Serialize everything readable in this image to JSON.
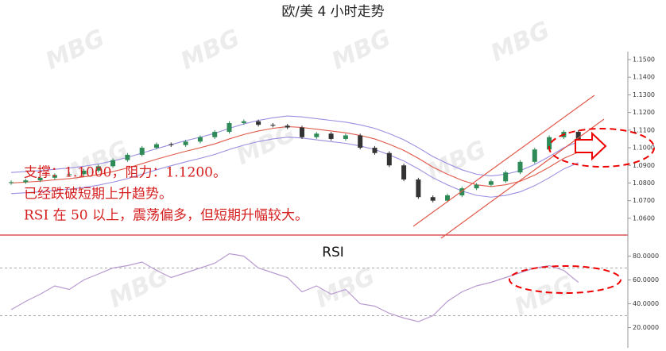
{
  "chart_data": [
    {
      "type": "candlestick",
      "title": "欧/美 4 小时走势",
      "open": [
        1.08,
        1.0805,
        1.0815,
        1.083,
        1.0845,
        1.085,
        1.087,
        1.0895,
        1.093,
        1.096,
        1.1,
        1.102,
        1.1015,
        1.1035,
        1.106,
        1.109,
        1.114,
        1.115,
        1.113,
        1.1125,
        1.1115,
        1.106,
        1.108,
        1.105,
        1.107,
        1.1,
        1.097,
        1.09,
        1.082,
        1.072,
        1.07,
        1.073,
        1.077,
        1.079,
        1.081,
        1.086,
        1.092,
        1.099,
        1.106,
        1.109
      ],
      "high": [
        1.0815,
        1.0825,
        1.084,
        1.0855,
        1.086,
        1.088,
        1.0905,
        1.094,
        1.097,
        1.101,
        1.103,
        1.103,
        1.1045,
        1.107,
        1.11,
        1.115,
        1.116,
        1.116,
        1.114,
        1.1135,
        1.1125,
        1.109,
        1.109,
        1.108,
        1.108,
        1.101,
        1.098,
        1.091,
        1.083,
        1.073,
        1.074,
        1.078,
        1.08,
        1.082,
        1.087,
        1.093,
        1.1,
        1.107,
        1.11,
        1.11
      ],
      "low": [
        1.079,
        1.0795,
        1.0805,
        1.082,
        1.0835,
        1.084,
        1.086,
        1.0885,
        1.092,
        1.095,
        1.099,
        1.1005,
        1.1005,
        1.1025,
        1.105,
        1.108,
        1.113,
        1.112,
        1.1115,
        1.1105,
        1.105,
        1.105,
        1.104,
        1.104,
        1.099,
        1.096,
        1.089,
        1.081,
        1.071,
        1.069,
        1.069,
        1.072,
        1.076,
        1.078,
        1.08,
        1.085,
        1.091,
        1.098,
        1.105,
        1.104
      ],
      "close": [
        1.0805,
        1.0815,
        1.083,
        1.0845,
        1.085,
        1.087,
        1.0895,
        1.093,
        1.096,
        1.1,
        1.102,
        1.1015,
        1.1035,
        1.106,
        1.109,
        1.114,
        1.115,
        1.113,
        1.1125,
        1.1115,
        1.106,
        1.108,
        1.105,
        1.107,
        1.1,
        1.097,
        1.09,
        1.082,
        1.072,
        1.07,
        1.073,
        1.077,
        1.079,
        1.081,
        1.086,
        1.092,
        1.099,
        1.106,
        1.109,
        1.105
      ],
      "bands": {
        "upper": [
          1.086,
          1.0865,
          1.087,
          1.0878,
          1.0885,
          1.0895,
          1.0908,
          1.0925,
          1.0945,
          1.097,
          1.0995,
          1.1018,
          1.104,
          1.106,
          1.1082,
          1.111,
          1.1135,
          1.1155,
          1.117,
          1.118,
          1.1175,
          1.1165,
          1.1155,
          1.1145,
          1.113,
          1.111,
          1.108,
          1.1045,
          1.1,
          1.095,
          1.091,
          1.0875,
          1.085,
          1.084,
          1.085,
          1.087,
          1.0905,
          1.095,
          1.1,
          1.1035
        ],
        "middle": [
          1.08,
          1.0805,
          1.081,
          1.0818,
          1.0825,
          1.0835,
          1.0848,
          1.0865,
          1.0885,
          1.091,
          1.0935,
          1.0958,
          1.098,
          1.1,
          1.1022,
          1.105,
          1.1075,
          1.1095,
          1.111,
          1.112,
          1.1115,
          1.1105,
          1.1095,
          1.1085,
          1.107,
          1.105,
          1.102,
          1.0985,
          1.094,
          1.089,
          1.085,
          1.0815,
          1.079,
          1.078,
          1.079,
          1.081,
          1.0845,
          1.089,
          1.094,
          1.0975
        ],
        "lower": [
          1.074,
          1.0745,
          1.075,
          1.0758,
          1.0765,
          1.0775,
          1.0788,
          1.0805,
          1.0825,
          1.085,
          1.0875,
          1.0898,
          1.092,
          1.094,
          1.0962,
          1.099,
          1.1015,
          1.1035,
          1.105,
          1.106,
          1.1055,
          1.1045,
          1.1035,
          1.1025,
          1.101,
          1.099,
          1.096,
          1.0925,
          1.088,
          1.083,
          1.079,
          1.0755,
          1.073,
          1.072,
          1.073,
          1.075,
          1.0785,
          1.083,
          1.088,
          1.0915
        ]
      },
      "up_color": "#2e8b57",
      "down_color": "#333333",
      "band_color": "#9a8fe0",
      "middle_color": "#e05a4a",
      "ylim": [
        1.0532,
        1.1545
      ],
      "yticks": [
        {
          "value": 1.06,
          "label": "1.0600"
        },
        {
          "value": 1.07,
          "label": "1.0700"
        },
        {
          "value": 1.08,
          "label": "1.0800"
        },
        {
          "value": 1.09,
          "label": "1.0900"
        },
        {
          "value": 1.1,
          "label": "1.1000"
        },
        {
          "value": 1.11,
          "label": "1.1100"
        },
        {
          "value": 1.12,
          "label": "1.1200"
        },
        {
          "value": 1.13,
          "label": "1.1300"
        },
        {
          "value": 1.14,
          "label": "1.1400"
        },
        {
          "value": 1.15,
          "label": "1.1500"
        }
      ],
      "annotations": [
        "支撑：1.1000，阻力：1.1200。",
        "已经跌破短期上升趋势。",
        "RSI 在 50 以上，震荡偏多，但短期升幅较大。"
      ],
      "watermark": "MBG"
    },
    {
      "type": "line",
      "title": "RSI",
      "color": "#b89ad0",
      "values": [
        35,
        42,
        48,
        55,
        52,
        60,
        65,
        70,
        72,
        75,
        68,
        62,
        66,
        70,
        74,
        82,
        80,
        70,
        66,
        62,
        50,
        55,
        48,
        52,
        40,
        38,
        32,
        28,
        25,
        30,
        42,
        50,
        55,
        58,
        62,
        66,
        70,
        72,
        68,
        58
      ],
      "levels": [
        70,
        30
      ],
      "ylim": [
        5,
        95
      ],
      "yticks": [
        {
          "value": 20,
          "label": "20.0000"
        },
        {
          "value": 40,
          "label": "40.0000"
        },
        {
          "value": 60,
          "label": "60.0000"
        },
        {
          "value": 80,
          "label": "80.0000"
        }
      ]
    }
  ]
}
